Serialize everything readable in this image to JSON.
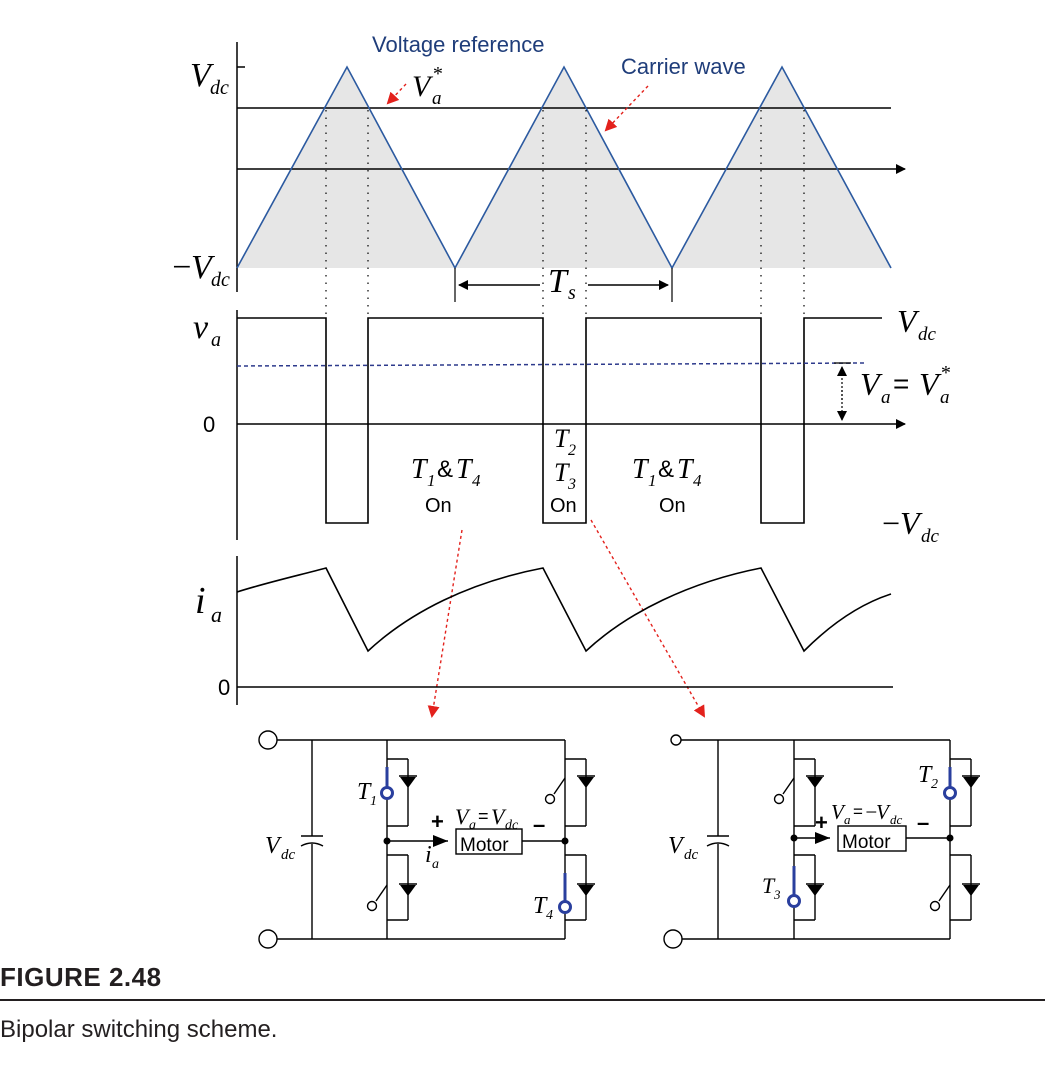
{
  "labels": {
    "voltage_reference": "Voltage reference",
    "carrier_wave": "Carrier wave",
    "vdc": "V",
    "dc_sub": "dc",
    "minus": "−",
    "va_star": "V",
    "a_sub": "a",
    "star": "*",
    "ts": "T",
    "s_sub": "s",
    "va_lower": "v",
    "zero": "0",
    "eq": "=",
    "t": "T",
    "amp": "&",
    "sub1": "1",
    "sub2": "2",
    "sub3": "3",
    "sub4": "4",
    "on": "On",
    "ia": "i",
    "motor": "Motor",
    "plus": "+",
    "dash": "–"
  },
  "caption": {
    "label": "FIGURE 2.48",
    "text": "Bipolar switching scheme."
  },
  "colors": {
    "carrier": "#2c5aa0",
    "reference_dashed": "#2d3a8c",
    "arrow_red": "#e3211c",
    "label_blue": "#1f3d7a",
    "shade": "#e6e6e6",
    "switch_blue": "#2a3f9e"
  }
}
